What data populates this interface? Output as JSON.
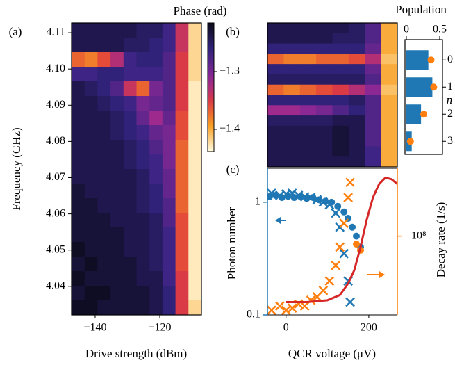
{
  "chart_data": [
    {
      "type": "heatmap",
      "panel_label": "(a)",
      "xlabel": "Drive strength (dBm)",
      "ylabel": "Frequency (GHz)",
      "xlim": [
        -147.3,
        -107.1
      ],
      "ylim": [
        4.0321,
        4.1127
      ],
      "xticks": [
        {
          "value": -140,
          "label": "−140"
        },
        {
          "value": -120,
          "label": "−120"
        }
      ],
      "yticks": [
        4.04,
        4.05,
        4.06,
        4.07,
        4.08,
        4.09,
        {
          "value": 4.1,
          "label": "4.10"
        },
        4.11
      ],
      "colorbar": {
        "label": "Phase (rad)",
        "lim": [
          -1.4386,
          -1.2157
        ],
        "ticks": [
          {
            "value": -1.3,
            "label": "−1.3"
          },
          {
            "value": -1.4,
            "label": "−1.4"
          }
        ]
      },
      "z": [
        [
          -1.24,
          -1.24,
          -1.24,
          -1.24,
          -1.24,
          -1.25,
          -1.25,
          -1.27,
          -1.34,
          -1.42
        ],
        [
          -1.24,
          -1.24,
          -1.24,
          -1.24,
          -1.25,
          -1.25,
          -1.26,
          -1.27,
          -1.34,
          -1.42
        ],
        [
          -1.37,
          -1.38,
          -1.36,
          -1.33,
          -1.27,
          -1.26,
          -1.26,
          -1.28,
          -1.35,
          -1.42
        ],
        [
          -1.27,
          -1.27,
          -1.26,
          -1.26,
          -1.27,
          -1.27,
          -1.27,
          -1.28,
          -1.35,
          -1.42
        ],
        [
          -1.24,
          -1.25,
          -1.26,
          -1.28,
          -1.34,
          -1.37,
          -1.3,
          -1.28,
          -1.35,
          -1.43
        ],
        [
          -1.24,
          -1.24,
          -1.25,
          -1.26,
          -1.27,
          -1.3,
          -1.29,
          -1.28,
          -1.35,
          -1.43
        ],
        [
          -1.24,
          -1.24,
          -1.24,
          -1.25,
          -1.26,
          -1.29,
          -1.32,
          -1.29,
          -1.36,
          -1.43
        ],
        [
          -1.24,
          -1.24,
          -1.24,
          -1.25,
          -1.26,
          -1.27,
          -1.29,
          -1.3,
          -1.36,
          -1.43
        ],
        [
          -1.24,
          -1.24,
          -1.24,
          -1.24,
          -1.25,
          -1.26,
          -1.28,
          -1.3,
          -1.37,
          -1.43
        ],
        [
          -1.24,
          -1.24,
          -1.24,
          -1.24,
          -1.25,
          -1.26,
          -1.27,
          -1.3,
          -1.37,
          -1.43
        ],
        [
          -1.24,
          -1.24,
          -1.24,
          -1.24,
          -1.24,
          -1.25,
          -1.27,
          -1.29,
          -1.37,
          -1.43
        ],
        [
          -1.23,
          -1.24,
          -1.24,
          -1.24,
          -1.24,
          -1.25,
          -1.26,
          -1.29,
          -1.37,
          -1.43
        ],
        [
          -1.23,
          -1.23,
          -1.24,
          -1.24,
          -1.24,
          -1.25,
          -1.26,
          -1.28,
          -1.37,
          -1.43
        ],
        [
          -1.23,
          -1.23,
          -1.23,
          -1.24,
          -1.24,
          -1.24,
          -1.25,
          -1.28,
          -1.36,
          -1.43
        ],
        [
          -1.23,
          -1.23,
          -1.23,
          -1.23,
          -1.24,
          -1.24,
          -1.25,
          -1.27,
          -1.36,
          -1.43
        ],
        [
          -1.22,
          -1.23,
          -1.23,
          -1.23,
          -1.24,
          -1.24,
          -1.25,
          -1.27,
          -1.36,
          -1.43
        ],
        [
          -1.23,
          -1.22,
          -1.23,
          -1.23,
          -1.23,
          -1.24,
          -1.25,
          -1.27,
          -1.36,
          -1.43
        ],
        [
          -1.22,
          -1.23,
          -1.23,
          -1.23,
          -1.23,
          -1.24,
          -1.24,
          -1.27,
          -1.35,
          -1.43
        ],
        [
          -1.23,
          -1.22,
          -1.22,
          -1.23,
          -1.23,
          -1.23,
          -1.24,
          -1.26,
          -1.35,
          -1.43
        ],
        [
          -1.22,
          -1.22,
          -1.23,
          -1.23,
          -1.23,
          -1.23,
          -1.24,
          -1.26,
          -1.35,
          -1.42
        ]
      ]
    },
    {
      "type": "heatmap",
      "panel_label": "(b)",
      "z": [
        [
          -1.24,
          -1.24,
          -1.24,
          -1.24,
          -1.24,
          -1.25,
          -1.28,
          -1.4
        ],
        [
          -1.24,
          -1.24,
          -1.24,
          -1.24,
          -1.25,
          -1.25,
          -1.28,
          -1.4
        ],
        [
          -1.26,
          -1.26,
          -1.26,
          -1.26,
          -1.26,
          -1.26,
          -1.29,
          -1.4
        ],
        [
          -1.37,
          -1.38,
          -1.38,
          -1.37,
          -1.37,
          -1.36,
          -1.33,
          -1.41
        ],
        [
          -1.26,
          -1.26,
          -1.26,
          -1.26,
          -1.26,
          -1.26,
          -1.29,
          -1.4
        ],
        [
          -1.25,
          -1.25,
          -1.25,
          -1.25,
          -1.25,
          -1.25,
          -1.28,
          -1.4
        ],
        [
          -1.37,
          -1.38,
          -1.37,
          -1.36,
          -1.35,
          -1.33,
          -1.31,
          -1.41
        ],
        [
          -1.26,
          -1.26,
          -1.26,
          -1.26,
          -1.26,
          -1.25,
          -1.28,
          -1.4
        ],
        [
          -1.32,
          -1.32,
          -1.31,
          -1.3,
          -1.28,
          -1.26,
          -1.28,
          -1.4
        ],
        [
          -1.25,
          -1.25,
          -1.25,
          -1.25,
          -1.24,
          -1.24,
          -1.28,
          -1.4
        ],
        [
          -1.24,
          -1.24,
          -1.24,
          -1.24,
          -1.23,
          -1.24,
          -1.28,
          -1.4
        ],
        [
          -1.24,
          -1.24,
          -1.24,
          -1.24,
          -1.23,
          -1.24,
          -1.28,
          -1.4
        ],
        [
          -1.24,
          -1.24,
          -1.24,
          -1.24,
          -1.23,
          -1.24,
          -1.27,
          -1.4
        ],
        [
          -1.24,
          -1.24,
          -1.24,
          -1.24,
          -1.24,
          -1.24,
          -1.27,
          -1.4
        ]
      ]
    },
    {
      "type": "barh",
      "title": "Population",
      "ylabel": "n",
      "categories": [
        "0",
        "1",
        "2",
        "3"
      ],
      "xlim": [
        -0.021,
        0.542
      ],
      "xticks": [
        0,
        0.5
      ],
      "series": [
        {
          "color": "#1f77b4",
          "marker": "bar",
          "values": [
            0.33,
            0.39,
            0.22,
            0.08
          ]
        },
        {
          "color": "#ff7f0e",
          "marker": "circle",
          "values": [
            0.37,
            0.41,
            0.26,
            0.06
          ]
        }
      ]
    },
    {
      "type": "dual_log",
      "panel_label": "(c)",
      "xlabel": "QCR voltage (μV)",
      "ylabel": "Photon number",
      "y2label": "Decay rate (1/s)",
      "xlim": [
        -45,
        269
      ],
      "xticks": [
        0,
        200
      ],
      "ylim": [
        0.1,
        2.0
      ],
      "yticks": [
        0.1,
        1
      ],
      "y2lim": [
        20000000,
        400000000
      ],
      "y2ticks": [
        {
          "value": 100000000,
          "label": "10⁸"
        }
      ],
      "ycolor": "#1f77b4",
      "y2color": "#ff7f0e",
      "series": [
        {
          "color": "#1f77b4",
          "marker": "circle",
          "axis": "y",
          "x": [
            -40,
            -25,
            -10,
            5,
            20,
            35,
            50,
            65,
            80,
            95,
            110,
            125,
            140,
            150,
            160,
            170,
            180
          ],
          "values": [
            1.12,
            1.15,
            1.1,
            1.13,
            1.1,
            1.12,
            1.08,
            1.1,
            1.05,
            1.02,
            1.0,
            0.92,
            0.82,
            0.72,
            0.6,
            0.5,
            0.4
          ]
        },
        {
          "color": "#1f77b4",
          "marker": "x",
          "axis": "y",
          "x": [
            -35,
            -15,
            0,
            15,
            30,
            45,
            60,
            75,
            90,
            105,
            120,
            130,
            140,
            150,
            155
          ],
          "values": [
            1.2,
            1.15,
            1.18,
            1.2,
            1.15,
            1.12,
            1.1,
            1.05,
            1.0,
            0.95,
            0.8,
            0.6,
            0.35,
            0.2,
            0.13
          ]
        },
        {
          "color": "#ff7f0e",
          "marker": "x",
          "axis": "y2",
          "x": [
            -35,
            -15,
            0,
            15,
            30,
            45,
            60,
            75,
            90,
            105,
            120,
            130,
            140,
            150,
            155
          ],
          "values": [
            22000000,
            24000000,
            22000000,
            23000000,
            25000000,
            24000000,
            27000000,
            29000000,
            33000000,
            40000000,
            55000000,
            80000000,
            130000000,
            220000000,
            300000000
          ]
        },
        {
          "color": "#ff7f0e",
          "marker": "circle",
          "axis": "y2",
          "x": [
            170,
            180
          ],
          "values": [
            85000000,
            75000000
          ]
        },
        {
          "color": "#d62728",
          "marker": "line",
          "axis": "y2",
          "x": [
            0,
            50,
            100,
            130,
            150,
            165,
            180,
            195,
            210,
            225,
            240,
            255,
            269
          ],
          "values": [
            26000000,
            26000000,
            27000000,
            30000000,
            38000000,
            50000000,
            80000000,
            140000000,
            220000000,
            290000000,
            330000000,
            320000000,
            290000000
          ]
        }
      ]
    }
  ]
}
